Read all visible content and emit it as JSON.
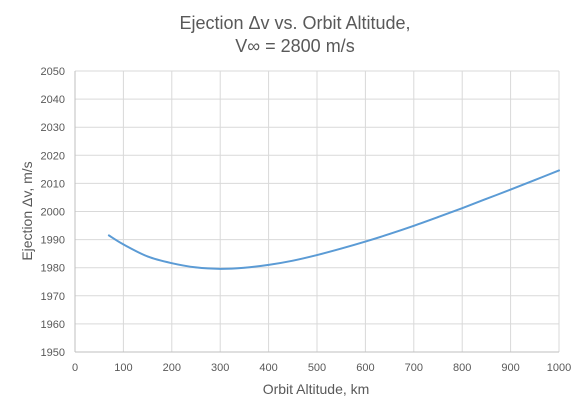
{
  "chart_data": {
    "type": "line",
    "title_line1": "Ejection Δv vs. Orbit Altitude,",
    "title_line2": "V∞ = 2800 m/s",
    "xlabel": "Orbit Altitude, km",
    "ylabel": "Ejection Δv, m/s",
    "xlim": [
      0,
      1000
    ],
    "ylim": [
      1950,
      2050
    ],
    "x_ticks": [
      "0",
      "100",
      "200",
      "300",
      "400",
      "500",
      "600",
      "700",
      "800",
      "900",
      "1000"
    ],
    "y_ticks": [
      "1950",
      "1960",
      "1970",
      "1980",
      "1990",
      "2000",
      "2010",
      "2020",
      "2030",
      "2040",
      "2050"
    ],
    "grid": true,
    "legend": "none",
    "series": [
      {
        "color": "#5b9bd5",
        "x": [
          70,
          100,
          150,
          200,
          250,
          300,
          350,
          400,
          450,
          500,
          550,
          600,
          650,
          700,
          750,
          800,
          850,
          900,
          950,
          1000
        ],
        "y": [
          1991.5,
          1988.3,
          1984.0,
          1981.6,
          1980.1,
          1979.6,
          1980.0,
          1981.0,
          1982.5,
          1984.5,
          1986.8,
          1989.3,
          1992.0,
          1994.9,
          1998.0,
          2001.2,
          2004.5,
          2007.8,
          2011.2,
          2014.6
        ]
      }
    ]
  }
}
